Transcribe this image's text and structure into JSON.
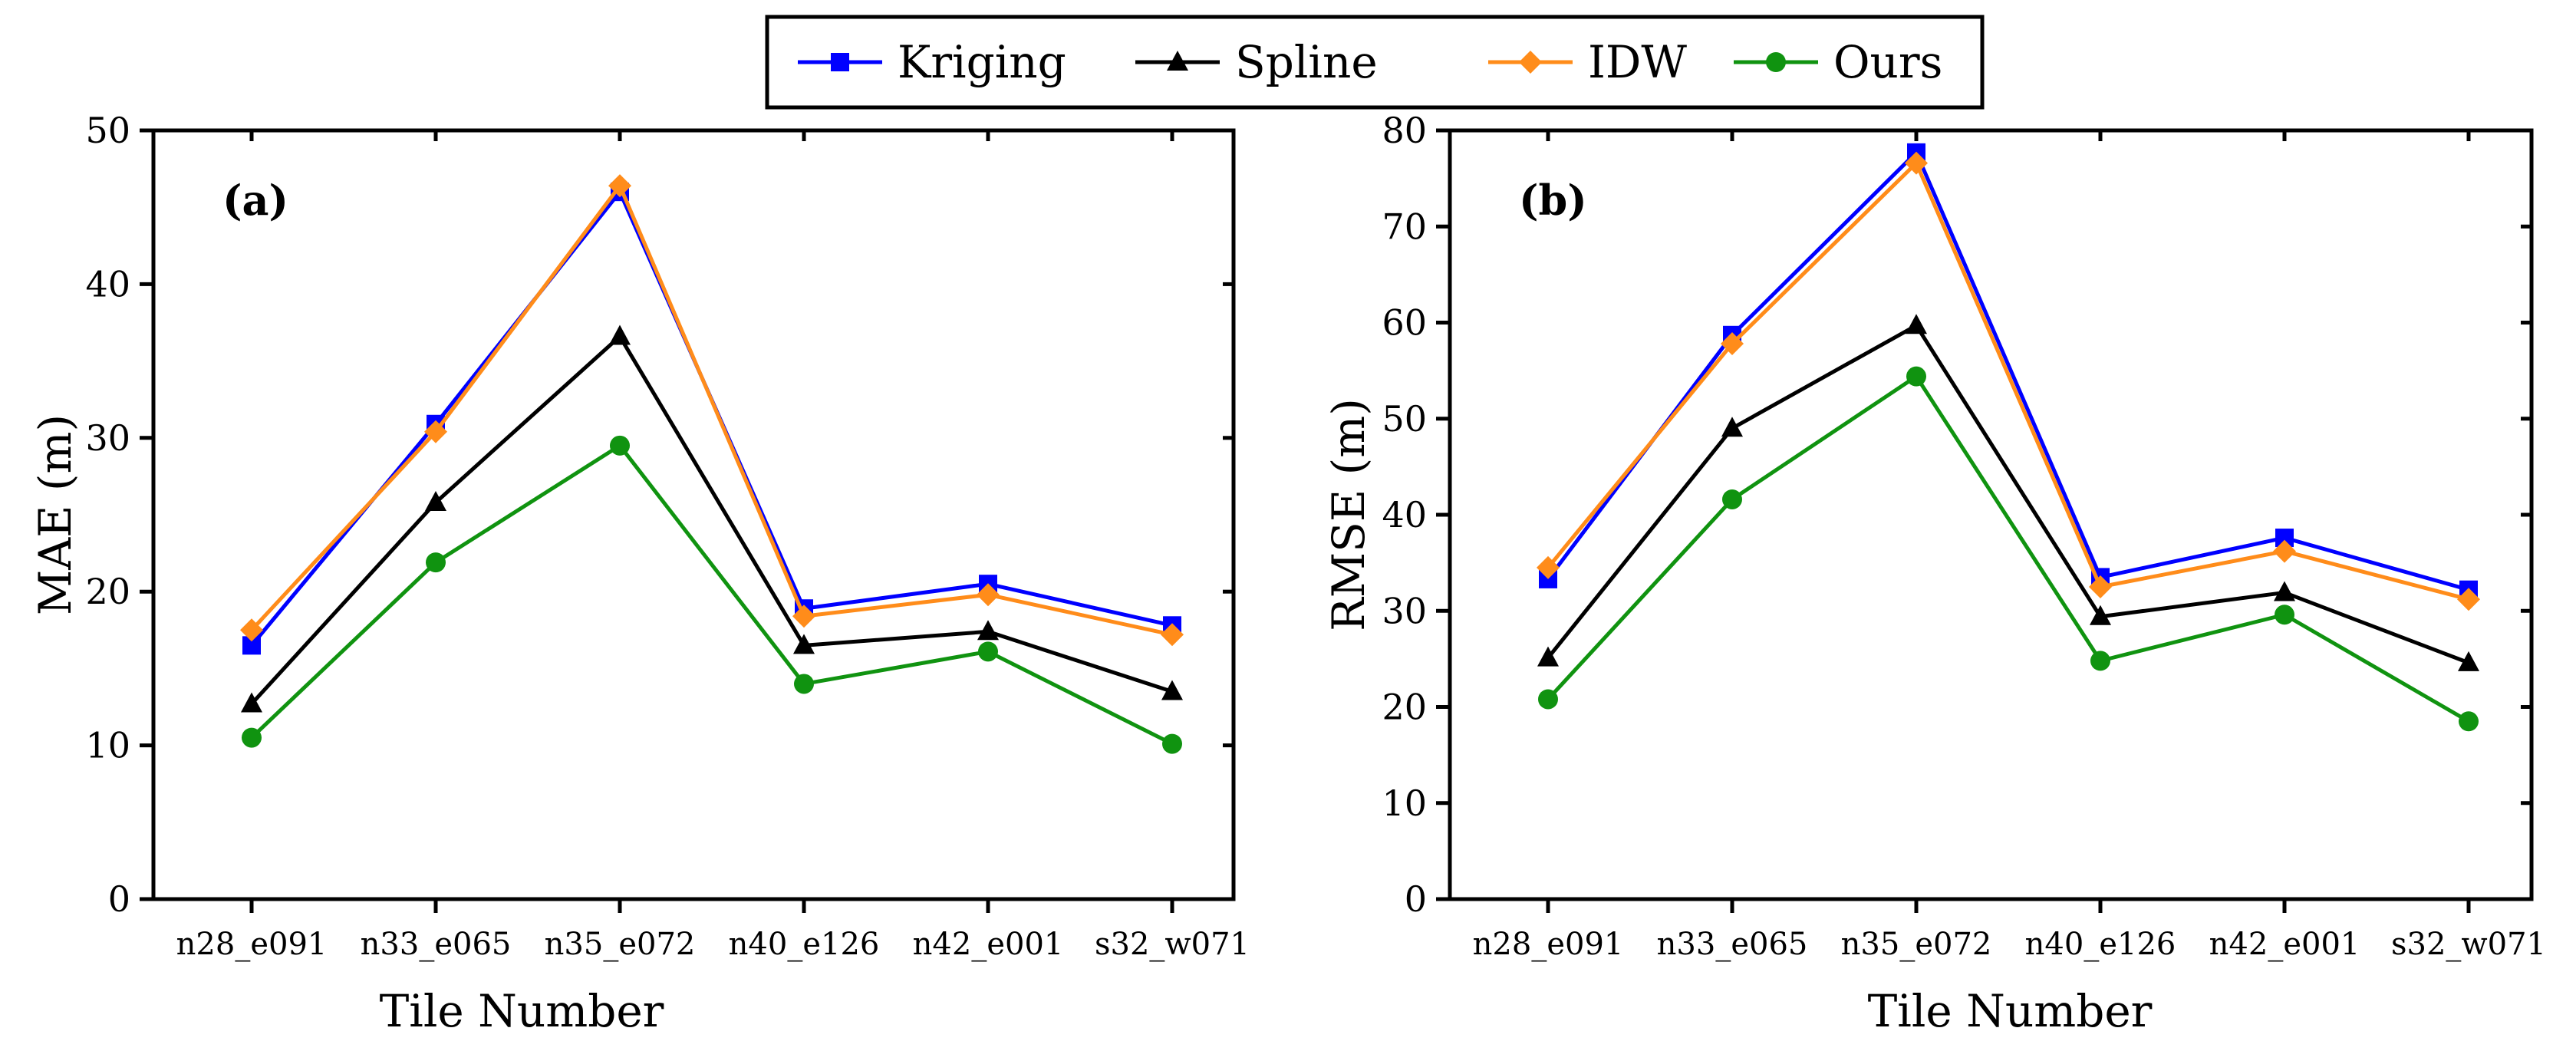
{
  "legend": {
    "items": [
      {
        "name": "Kriging",
        "color": "#0000ff",
        "marker": "square"
      },
      {
        "name": "Spline",
        "color": "#000000",
        "marker": "triangle"
      },
      {
        "name": "IDW",
        "color": "#ff8c1a",
        "marker": "diamond"
      },
      {
        "name": "Ours",
        "color": "#109310",
        "marker": "circle"
      }
    ]
  },
  "chart_data": [
    {
      "type": "line",
      "panel_label": "(a)",
      "title": "",
      "xlabel": "Tile Number",
      "ylabel": "MAE (m)",
      "ylim": [
        0,
        50
      ],
      "yticks": [
        0,
        10,
        20,
        30,
        40,
        50
      ],
      "grid": false,
      "categories": [
        "n28_e091",
        "n33_e065",
        "n35_e072",
        "n40_e126",
        "n42_e001",
        "s32_w071"
      ],
      "series": [
        {
          "name": "Kriging",
          "values": [
            16.5,
            30.9,
            46.0,
            18.9,
            20.5,
            17.8
          ]
        },
        {
          "name": "Spline",
          "values": [
            12.7,
            25.8,
            36.6,
            16.5,
            17.4,
            13.5
          ]
        },
        {
          "name": "IDW",
          "values": [
            17.5,
            30.4,
            46.4,
            18.4,
            19.8,
            17.2
          ]
        },
        {
          "name": "Ours",
          "values": [
            10.5,
            21.9,
            29.5,
            14.0,
            16.1,
            10.1
          ]
        }
      ]
    },
    {
      "type": "line",
      "panel_label": "(b)",
      "title": "",
      "xlabel": "Tile Number",
      "ylabel": "RMSE (m)",
      "ylim": [
        0,
        80
      ],
      "yticks": [
        0,
        10,
        20,
        30,
        40,
        50,
        60,
        70,
        80
      ],
      "grid": false,
      "categories": [
        "n28_e091",
        "n33_e065",
        "n35_e072",
        "n40_e126",
        "n42_e001",
        "s32_w071"
      ],
      "series": [
        {
          "name": "Kriging",
          "values": [
            33.3,
            58.7,
            77.7,
            33.5,
            37.6,
            32.2
          ]
        },
        {
          "name": "Spline",
          "values": [
            25.1,
            49.0,
            59.7,
            29.4,
            31.9,
            24.6
          ]
        },
        {
          "name": "IDW",
          "values": [
            34.5,
            57.8,
            76.6,
            32.5,
            36.2,
            31.2
          ]
        },
        {
          "name": "Ours",
          "values": [
            20.8,
            41.6,
            54.4,
            24.8,
            29.6,
            18.5
          ]
        }
      ]
    }
  ]
}
